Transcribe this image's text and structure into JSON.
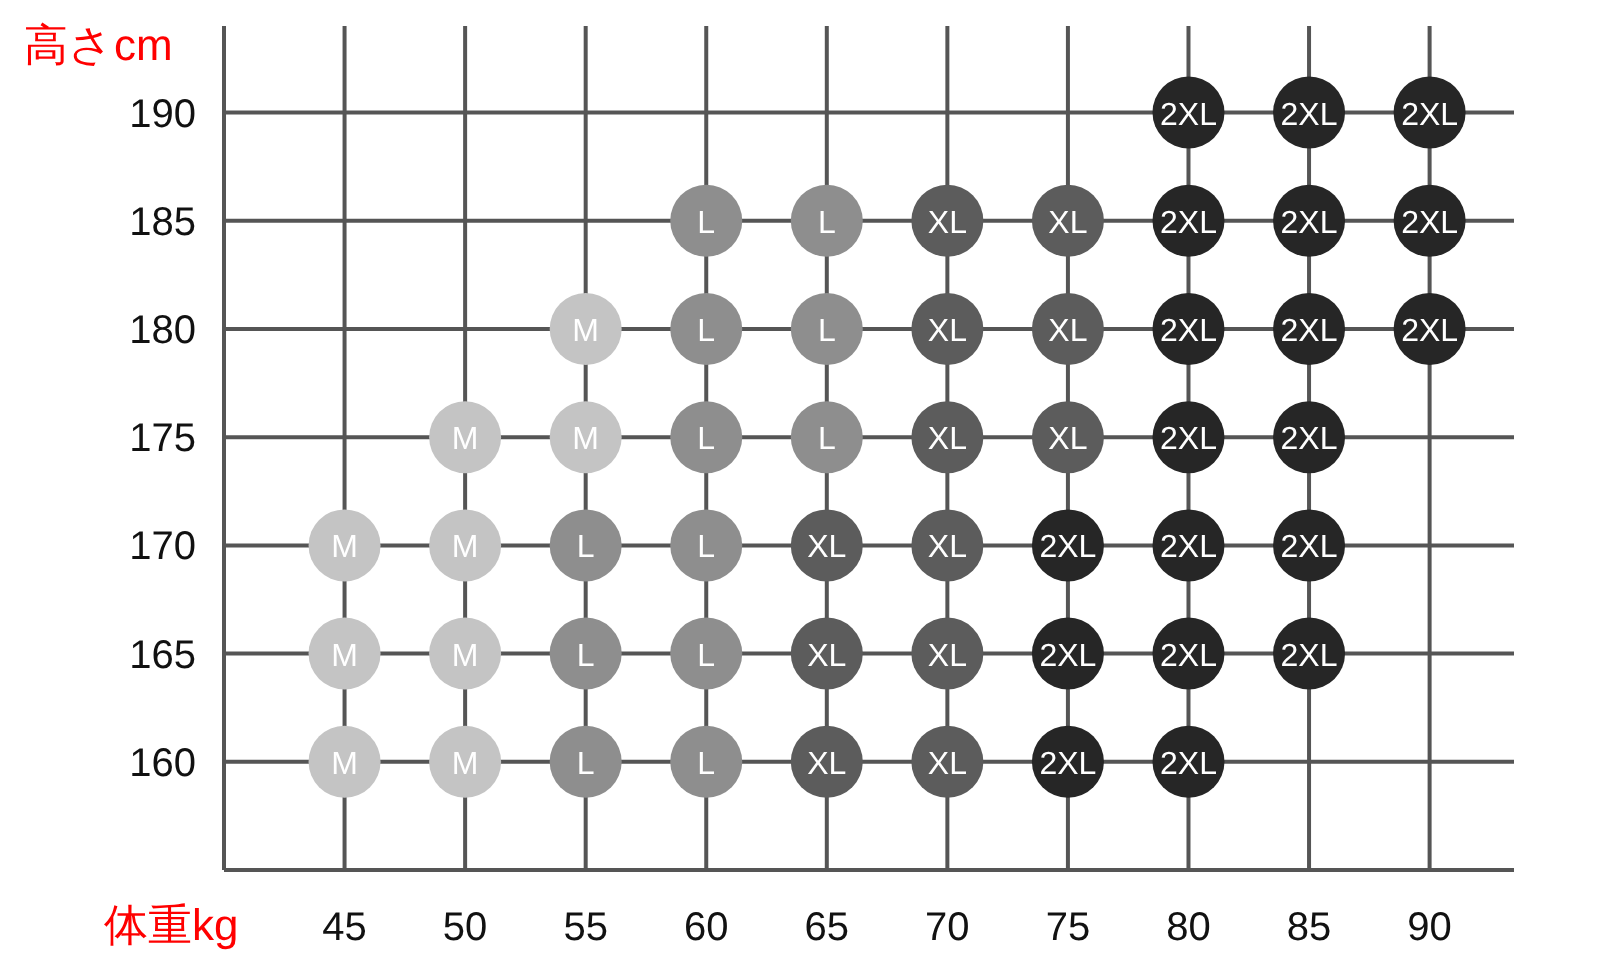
{
  "chart_data": {
    "type": "scatter",
    "xlabel": "体重kg",
    "ylabel": "高さcm",
    "xlim": [
      40,
      93.5
    ],
    "ylim": [
      155,
      194
    ],
    "xticks": [
      45,
      50,
      55,
      60,
      65,
      70,
      75,
      80,
      85,
      90
    ],
    "yticks": [
      160,
      165,
      170,
      175,
      180,
      185,
      190
    ],
    "grid": true,
    "marker": "circle",
    "series": [
      {
        "name": "M",
        "color": "#c4c4c4",
        "x": [
          45,
          50,
          45,
          50,
          45,
          50,
          50,
          55,
          55
        ],
        "values": [
          160,
          160,
          165,
          165,
          170,
          170,
          175,
          175,
          180
        ]
      },
      {
        "name": "L",
        "color": "#8e8e8e",
        "x": [
          55,
          60,
          55,
          60,
          55,
          60,
          60,
          65,
          60,
          65,
          60,
          65
        ],
        "values": [
          160,
          160,
          165,
          165,
          170,
          170,
          175,
          175,
          180,
          180,
          185,
          185
        ]
      },
      {
        "name": "XL",
        "color": "#5c5c5c",
        "x": [
          65,
          70,
          65,
          70,
          65,
          70,
          70,
          75,
          70,
          75,
          70,
          75
        ],
        "values": [
          160,
          160,
          165,
          165,
          170,
          170,
          175,
          175,
          180,
          180,
          185,
          185
        ]
      },
      {
        "name": "2XL",
        "color": "#262626",
        "x": [
          75,
          80,
          75,
          80,
          85,
          75,
          80,
          85,
          80,
          85,
          80,
          85,
          90,
          80,
          85,
          90,
          80,
          85,
          90
        ],
        "values": [
          160,
          160,
          165,
          165,
          165,
          170,
          170,
          170,
          175,
          175,
          180,
          180,
          180,
          185,
          185,
          185,
          190,
          190,
          190
        ]
      }
    ]
  }
}
